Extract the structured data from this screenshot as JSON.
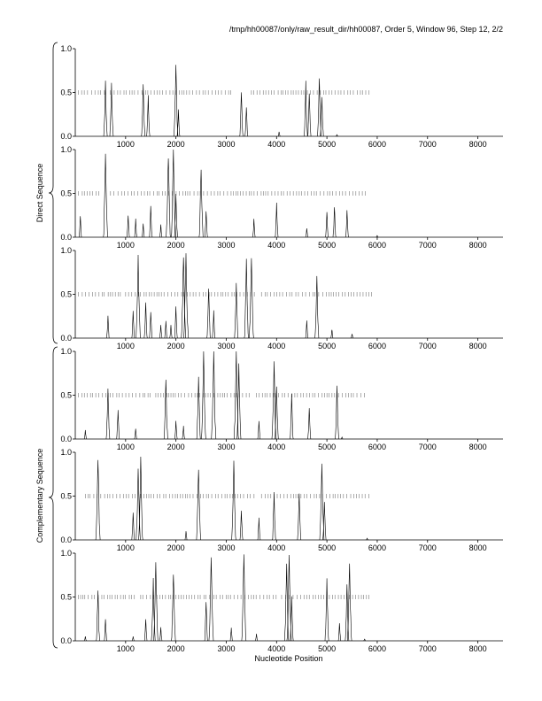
{
  "header": {
    "title": "/tmp/hh00087/only/raw_result_dir/hh00087, Order 5, Window 96, Step 12, 2/2"
  },
  "labels": {
    "direct": "Direct Sequence",
    "complementary": "Complementary Sequence",
    "xlabel": "Nucleotide Position"
  },
  "chart_data": {
    "type": "line",
    "title": "/tmp/hh00087/only/raw_result_dir/hh00087, Order 5, Window 96, Step 12, 2/2",
    "xlabel": "Nucleotide Position",
    "ylabel": "",
    "xlim": [
      0,
      8500
    ],
    "ylim": [
      0,
      1.0
    ],
    "x_ticks": [
      "1000",
      "2000",
      "3000",
      "4000",
      "5000",
      "6000",
      "7000",
      "8000"
    ],
    "y_ticks": [
      "0.0",
      "0.5",
      "1.0"
    ],
    "panels": [
      {
        "group": "Direct Sequence",
        "frame": 1,
        "peaks": [
          [
            600,
            0.6
          ],
          [
            720,
            0.58
          ],
          [
            1350,
            0.6
          ],
          [
            1450,
            0.45
          ],
          [
            2000,
            0.8
          ],
          [
            2050,
            0.3
          ],
          [
            3300,
            0.5
          ],
          [
            3400,
            0.35
          ],
          [
            4050,
            0.05
          ],
          [
            4580,
            0.6
          ],
          [
            4650,
            0.5
          ],
          [
            4850,
            0.7
          ],
          [
            4900,
            0.45
          ],
          [
            5200,
            0.02
          ]
        ],
        "marks": [
          [
            60,
            640
          ],
          [
            700,
            3100
          ],
          [
            3500,
            5850
          ]
        ]
      },
      {
        "group": "Direct Sequence",
        "frame": 2,
        "peaks": [
          [
            100,
            0.25
          ],
          [
            600,
            0.9
          ],
          [
            1050,
            0.25
          ],
          [
            1200,
            0.2
          ],
          [
            1350,
            0.15
          ],
          [
            1500,
            0.35
          ],
          [
            1700,
            0.15
          ],
          [
            1850,
            0.95
          ],
          [
            1950,
            1.0
          ],
          [
            2000,
            0.5
          ],
          [
            2500,
            0.8
          ],
          [
            2600,
            0.3
          ],
          [
            3550,
            0.2
          ],
          [
            4000,
            0.38
          ],
          [
            4600,
            0.1
          ],
          [
            5000,
            0.3
          ],
          [
            5150,
            0.35
          ],
          [
            5400,
            0.3
          ],
          [
            6000,
            0.02
          ]
        ],
        "marks": [
          [
            60,
            480
          ],
          [
            700,
            2500
          ],
          [
            2550,
            5820
          ]
        ]
      },
      {
        "group": "Direct Sequence",
        "frame": 3,
        "peaks": [
          [
            650,
            0.25
          ],
          [
            1150,
            0.3
          ],
          [
            1250,
            0.9
          ],
          [
            1400,
            0.4
          ],
          [
            1500,
            0.3
          ],
          [
            1700,
            0.15
          ],
          [
            1800,
            0.2
          ],
          [
            1900,
            0.15
          ],
          [
            2000,
            0.35
          ],
          [
            2150,
            0.95
          ],
          [
            2200,
            1.0
          ],
          [
            2650,
            0.58
          ],
          [
            2750,
            0.3
          ],
          [
            3200,
            0.6
          ],
          [
            3400,
            0.9
          ],
          [
            3500,
            0.95
          ],
          [
            4600,
            0.2
          ],
          [
            4800,
            0.7
          ],
          [
            5100,
            0.1
          ],
          [
            5500,
            0.05
          ]
        ],
        "marks": [
          [
            60,
            900
          ],
          [
            1000,
            3600
          ],
          [
            3700,
            5900
          ]
        ]
      },
      {
        "group": "Complementary Sequence",
        "frame": 1,
        "peaks": [
          [
            200,
            0.1
          ],
          [
            650,
            0.6
          ],
          [
            850,
            0.35
          ],
          [
            1200,
            0.12
          ],
          [
            1800,
            0.7
          ],
          [
            2000,
            0.2
          ],
          [
            2150,
            0.15
          ],
          [
            2450,
            0.7
          ],
          [
            2550,
            0.95
          ],
          [
            2750,
            0.98
          ],
          [
            3200,
            1.0
          ],
          [
            3250,
            0.85
          ],
          [
            3650,
            0.2
          ],
          [
            3950,
            0.9
          ],
          [
            4000,
            0.6
          ],
          [
            4300,
            0.5
          ],
          [
            4650,
            0.35
          ],
          [
            5200,
            0.6
          ],
          [
            5300,
            0.02
          ]
        ],
        "marks": [
          [
            60,
            1500
          ],
          [
            1600,
            3500
          ],
          [
            3600,
            5750
          ]
        ]
      },
      {
        "group": "Complementary Sequence",
        "frame": 2,
        "peaks": [
          [
            450,
            0.95
          ],
          [
            1150,
            0.3
          ],
          [
            1250,
            0.85
          ],
          [
            1300,
            0.9
          ],
          [
            2200,
            0.1
          ],
          [
            2450,
            0.85
          ],
          [
            3150,
            0.9
          ],
          [
            3300,
            0.35
          ],
          [
            3650,
            0.25
          ],
          [
            3950,
            0.55
          ],
          [
            4450,
            0.55
          ],
          [
            4900,
            0.9
          ],
          [
            4950,
            0.45
          ],
          [
            5800,
            0.02
          ]
        ],
        "marks": [
          [
            200,
            1200
          ],
          [
            1300,
            3600
          ],
          [
            3700,
            5850
          ]
        ]
      },
      {
        "group": "Complementary Sequence",
        "frame": 3,
        "peaks": [
          [
            200,
            0.05
          ],
          [
            450,
            0.58
          ],
          [
            600,
            0.25
          ],
          [
            1150,
            0.05
          ],
          [
            1400,
            0.25
          ],
          [
            1550,
            0.7
          ],
          [
            1600,
            0.9
          ],
          [
            1700,
            0.15
          ],
          [
            1950,
            0.8
          ],
          [
            2600,
            0.45
          ],
          [
            2700,
            0.98
          ],
          [
            3100,
            0.15
          ],
          [
            3350,
            0.95
          ],
          [
            3600,
            0.08
          ],
          [
            4200,
            0.85
          ],
          [
            4250,
            1.0
          ],
          [
            4300,
            0.5
          ],
          [
            5000,
            0.7
          ],
          [
            5250,
            0.2
          ],
          [
            5400,
            0.65
          ],
          [
            5450,
            0.9
          ],
          [
            5750,
            0.02
          ]
        ],
        "marks": [
          [
            60,
            1200
          ],
          [
            1300,
            4000
          ],
          [
            4100,
            5850
          ]
        ]
      }
    ]
  }
}
